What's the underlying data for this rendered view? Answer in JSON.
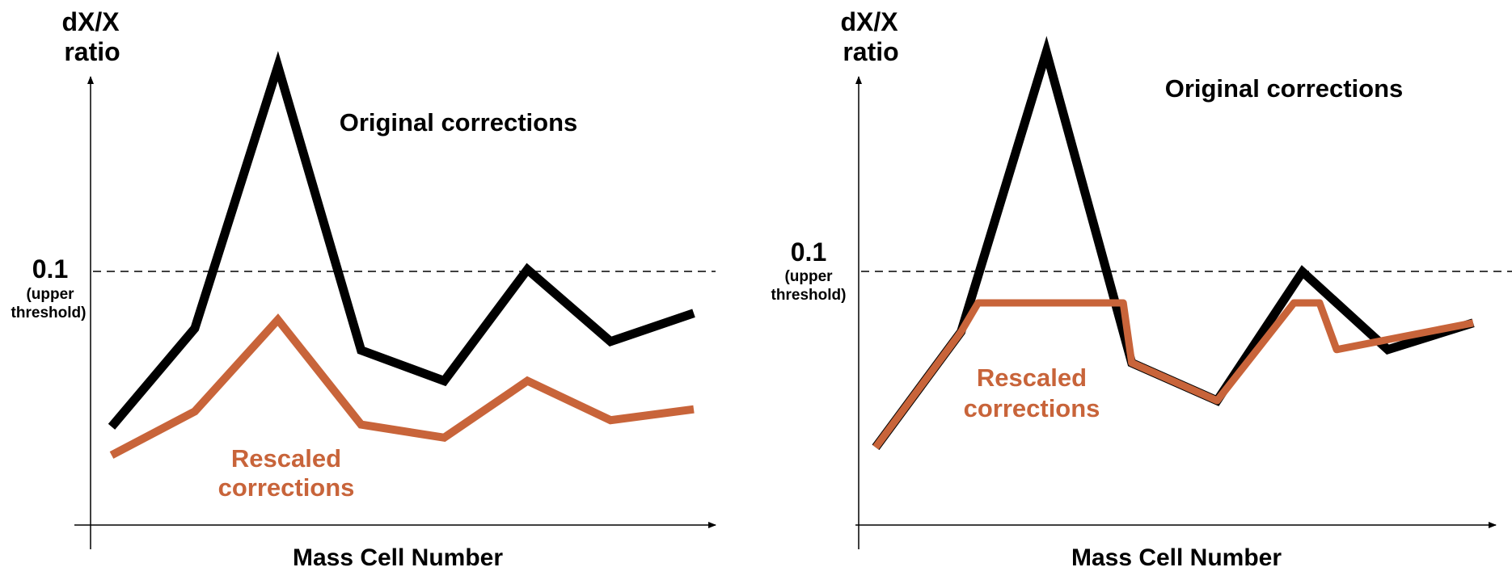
{
  "colors": {
    "original": "#000000",
    "rescaled": "#c8643a",
    "axis": "#000000"
  },
  "chart_data": [
    {
      "type": "line",
      "ylabel_line1": "dX/X",
      "ylabel_line2": "ratio",
      "xlabel": "Mass Cell Number",
      "threshold": {
        "value": 0.1,
        "label": "0.1",
        "note_line1": "(upper",
        "note_line2": "threshold)"
      },
      "ylim": [
        0,
        0.22
      ],
      "x": [
        1,
        2,
        3,
        4,
        5,
        6,
        7,
        8
      ],
      "series": [
        {
          "name": "Original corrections",
          "values": [
            0.045,
            0.09,
            0.21,
            0.08,
            0.066,
            0.117,
            0.084,
            0.097
          ]
        },
        {
          "name": "Rescaled corrections",
          "values": [
            0.032,
            0.052,
            0.094,
            0.046,
            0.04,
            0.066,
            0.048,
            0.053
          ]
        }
      ]
    },
    {
      "type": "line",
      "ylabel_line1": "dX/X",
      "ylabel_line2": "ratio",
      "xlabel": "Mass Cell Number",
      "threshold": {
        "value": 0.1,
        "label": "0.1",
        "note_line1": "(upper",
        "note_line2": "threshold)"
      },
      "ylim": [
        0,
        0.22
      ],
      "x": [
        1,
        2,
        3,
        4,
        5,
        6,
        7,
        8
      ],
      "series": [
        {
          "name": "Original corrections",
          "values": [
            0.035,
            0.087,
            0.213,
            0.073,
            0.056,
            0.114,
            0.079,
            0.091
          ]
        },
        {
          "name": "Rescaled corrections",
          "values": [
            0.035,
            0.087,
            0.1,
            0.1,
            0.073,
            0.056,
            0.1,
            0.1,
            0.079,
            0.091
          ],
          "x": [
            1,
            2,
            2.2,
            3.9,
            4,
            5,
            5.9,
            6.2,
            6.4,
            8
          ]
        }
      ]
    }
  ]
}
